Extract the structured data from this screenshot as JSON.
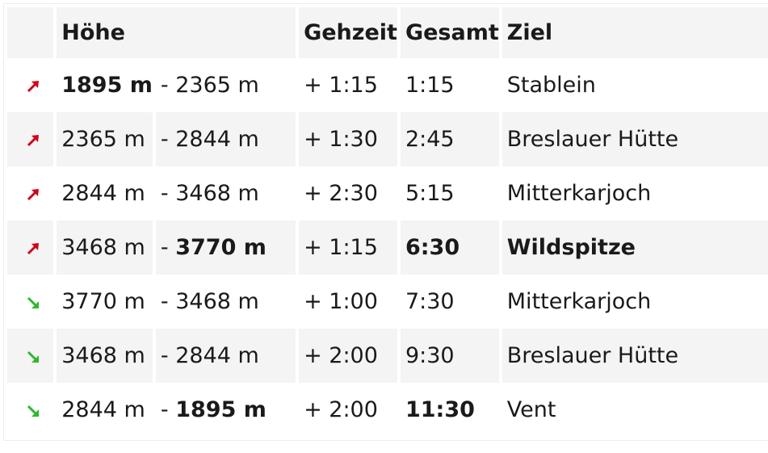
{
  "colors": {
    "ascent": "#d0021b",
    "descent": "#2eb82e"
  },
  "headers": {
    "elevation": "Höhe",
    "walk_time": "Gehzeit",
    "total": "Gesamt",
    "destination": "Ziel"
  },
  "rows": [
    {
      "direction": "up-arrow-icon",
      "from": "1895 m",
      "to": "- 2365 m",
      "walk": "+ 1:15",
      "total": "1:15",
      "dest": "Stablein",
      "bold_from": true,
      "bold_to": false,
      "bold_total": false,
      "bold_dest": false
    },
    {
      "direction": "up-arrow-icon",
      "from": "2365 m",
      "to": "- 2844 m",
      "walk": "+ 1:30",
      "total": "2:45",
      "dest": "Breslauer Hütte",
      "bold_from": false,
      "bold_to": false,
      "bold_total": false,
      "bold_dest": false
    },
    {
      "direction": "up-arrow-icon",
      "from": "2844 m",
      "to": "- 3468 m",
      "walk": "+ 2:30",
      "total": "5:15",
      "dest": "Mitterkarjoch",
      "bold_from": false,
      "bold_to": false,
      "bold_total": false,
      "bold_dest": false
    },
    {
      "direction": "up-arrow-icon",
      "from": "3468 m",
      "to_prefix": "- ",
      "to_value": "3770 m",
      "walk": "+ 1:15",
      "total": "6:30",
      "dest": "Wildspitze",
      "bold_from": false,
      "bold_to": true,
      "bold_total": true,
      "bold_dest": true
    },
    {
      "direction": "down-arrow-icon",
      "from": "3770 m",
      "to": "- 3468 m",
      "walk": "+ 1:00",
      "total": "7:30",
      "dest": "Mitterkarjoch",
      "bold_from": false,
      "bold_to": false,
      "bold_total": false,
      "bold_dest": false
    },
    {
      "direction": "down-arrow-icon",
      "from": "3468 m",
      "to": "- 2844 m",
      "walk": "+ 2:00",
      "total": "9:30",
      "dest": "Breslauer Hütte",
      "bold_from": false,
      "bold_to": false,
      "bold_total": false,
      "bold_dest": false
    },
    {
      "direction": "down-arrow-icon",
      "from": "2844 m",
      "to_prefix": "- ",
      "to_value": "1895 m",
      "walk": "+ 2:00",
      "total": "11:30",
      "dest": "Vent",
      "bold_from": false,
      "bold_to": true,
      "bold_total": true,
      "bold_dest": false
    }
  ]
}
